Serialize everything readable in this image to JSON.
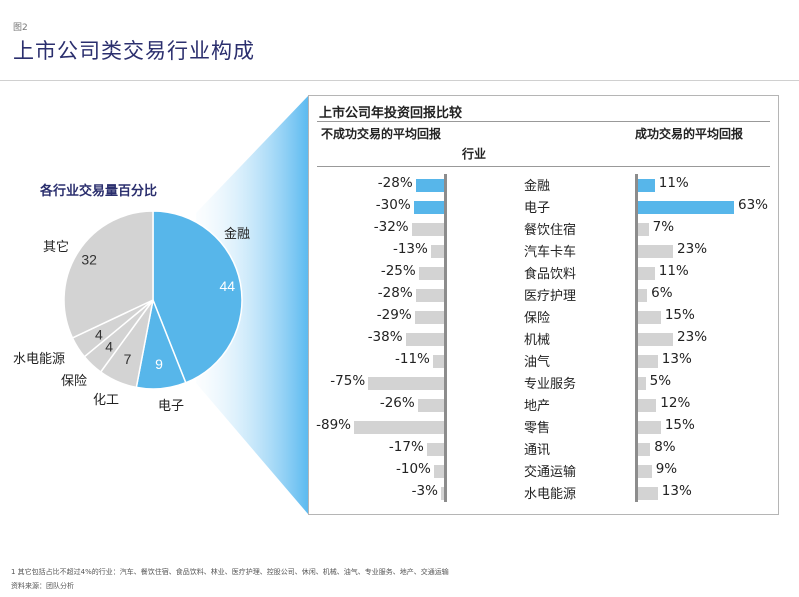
{
  "figure_label": "图2",
  "title": "上市公司类交易行业构成",
  "pie_title": "各行业交易量百分比",
  "colors": {
    "highlight": "#57b6ea",
    "gray": "#d3d3d3",
    "divider": "#ffffff",
    "title": "#2b2f6e"
  },
  "chart_data": [
    {
      "type": "pie",
      "title": "各行业交易量百分比",
      "slices": [
        {
          "label": "金融",
          "value": 44,
          "color": "#57b6ea"
        },
        {
          "label": "电子",
          "value": 9,
          "color": "#57b6ea"
        },
        {
          "label": "化工",
          "value": 7,
          "color": "#d3d3d3"
        },
        {
          "label": "保险",
          "value": 4,
          "color": "#d3d3d3"
        },
        {
          "label": "水电能源",
          "value": 4,
          "color": "#d3d3d3"
        },
        {
          "label": "其它",
          "value": 32,
          "color": "#d3d3d3"
        }
      ]
    },
    {
      "type": "bar",
      "title": "上市公司年投资回报比较",
      "category_header": "行业",
      "categories": [
        "金融",
        "电子",
        "餐饮住宿",
        "汽车卡车",
        "食品饮料",
        "医疗护理",
        "保险",
        "机械",
        "油气",
        "专业服务",
        "地产",
        "零售",
        "通讯",
        "交通运输",
        "水电能源"
      ],
      "series": [
        {
          "name": "不成功交易的平均回报",
          "unit": "%",
          "values": [
            -28,
            -30,
            -32,
            -13,
            -25,
            -28,
            -29,
            -38,
            -11,
            -75,
            -26,
            -89,
            -17,
            -10,
            -3
          ]
        },
        {
          "name": "成功交易的平均回报",
          "unit": "%",
          "values": [
            11,
            63,
            7,
            23,
            11,
            6,
            15,
            23,
            13,
            5,
            12,
            15,
            8,
            9,
            13
          ]
        }
      ],
      "highlighted_categories": [
        "金融",
        "电子"
      ]
    }
  ],
  "footnote": "1 其它包括占比不超过4%的行业：汽车、餐饮住宿、食品饮料、林业、医疗护理、控股公司、休闲、机械、油气、专业服务、地产、交通运输",
  "source": "资料来源：团队分析"
}
